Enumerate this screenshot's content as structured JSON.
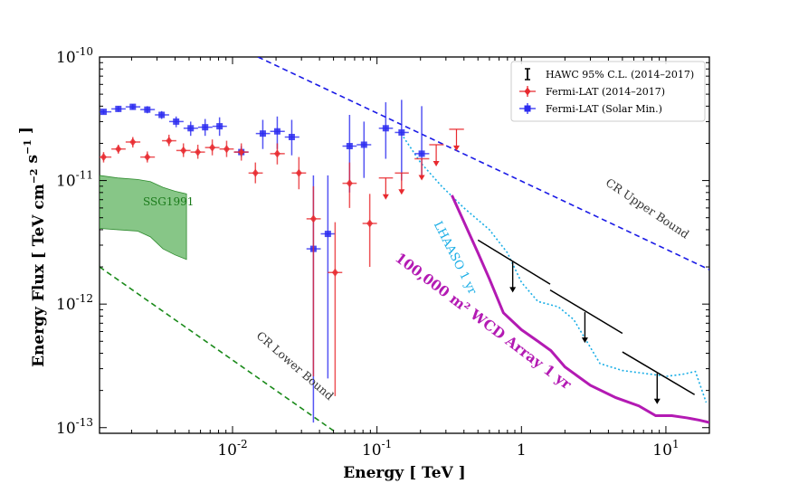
{
  "chart_data": {
    "type": "scatter",
    "xlabel": "Energy [ TeV ]",
    "ylabel": "Energy Flux [ TeV cm^-2 s^-1 ]",
    "xscale": "log",
    "yscale": "log",
    "xlim": [
      0.0012,
      20
    ],
    "ylim": [
      9e-14,
      1e-10
    ],
    "xticks": [
      {
        "value": 0.01,
        "base": "10",
        "exp": "-2"
      },
      {
        "value": 0.1,
        "base": "10",
        "exp": "-1"
      },
      {
        "value": 1,
        "base": "1",
        "exp": ""
      },
      {
        "value": 10,
        "base": "10",
        "exp": "1"
      }
    ],
    "yticks": [
      {
        "value": 1e-13,
        "base": "10",
        "exp": "-13"
      },
      {
        "value": 1e-12,
        "base": "10",
        "exp": "-12"
      },
      {
        "value": 1e-11,
        "base": "10",
        "exp": "-11"
      },
      {
        "value": 1e-10,
        "base": "10",
        "exp": "-10"
      }
    ],
    "legend": {
      "position": "top-right",
      "entries": [
        {
          "label": "HAWC 95% C.L. (2014–2017)",
          "color": "#000000",
          "marker": "errorbar"
        },
        {
          "label": "Fermi-LAT (2014–2017)",
          "color": "#e8292e",
          "marker": "diamond"
        },
        {
          "label": "Fermi-LAT (Solar Min.)",
          "color": "#2b2bf0",
          "marker": "square"
        }
      ]
    },
    "series": [
      {
        "name": "Fermi-LAT (Solar Min.)",
        "color": "#2b2bf0",
        "marker": "square",
        "points": [
          {
            "x": 0.00128,
            "y": 3.6e-11,
            "xlo": 0.0011,
            "xhi": 0.00145,
            "ylo": 3.45e-11,
            "yhi": 3.75e-11
          },
          {
            "x": 0.00162,
            "y": 3.8e-11,
            "xlo": 0.00145,
            "xhi": 0.00182,
            "ylo": 3.6e-11,
            "yhi": 4e-11
          },
          {
            "x": 0.00204,
            "y": 3.95e-11,
            "xlo": 0.00182,
            "xhi": 0.0023,
            "ylo": 3.75e-11,
            "yhi": 4.15e-11
          },
          {
            "x": 0.00257,
            "y": 3.75e-11,
            "xlo": 0.0023,
            "xhi": 0.0029,
            "ylo": 3.5e-11,
            "yhi": 4e-11
          },
          {
            "x": 0.00323,
            "y": 3.4e-11,
            "xlo": 0.0029,
            "xhi": 0.00364,
            "ylo": 3.15e-11,
            "yhi": 3.65e-11
          },
          {
            "x": 0.00407,
            "y": 3e-11,
            "xlo": 0.00364,
            "xhi": 0.00458,
            "ylo": 2.7e-11,
            "yhi": 3.3e-11
          },
          {
            "x": 0.00513,
            "y": 2.65e-11,
            "xlo": 0.00458,
            "xhi": 0.00577,
            "ylo": 2.3e-11,
            "yhi": 3e-11
          },
          {
            "x": 0.00646,
            "y": 2.7e-11,
            "xlo": 0.00577,
            "xhi": 0.00726,
            "ylo": 2.3e-11,
            "yhi": 3.15e-11
          },
          {
            "x": 0.00813,
            "y": 2.75e-11,
            "xlo": 0.00726,
            "xhi": 0.00914,
            "ylo": 2.3e-11,
            "yhi": 3.25e-11
          },
          {
            "x": 0.0115,
            "y": 1.7e-11,
            "xlo": 0.0103,
            "xhi": 0.0129,
            "ylo": 1.55e-11,
            "yhi": 1.9e-11
          },
          {
            "x": 0.0162,
            "y": 2.4e-11,
            "xlo": 0.0145,
            "xhi": 0.0182,
            "ylo": 1.8e-11,
            "yhi": 3.1e-11
          },
          {
            "x": 0.0204,
            "y": 2.5e-11,
            "xlo": 0.0182,
            "xhi": 0.023,
            "ylo": 1.8e-11,
            "yhi": 3.3e-11
          },
          {
            "x": 0.0257,
            "y": 2.25e-11,
            "xlo": 0.023,
            "xhi": 0.029,
            "ylo": 1.6e-11,
            "yhi": 3.1e-11
          },
          {
            "x": 0.0363,
            "y": 2.8e-12,
            "xlo": 0.0325,
            "xhi": 0.0408,
            "ylo": 1.1e-13,
            "yhi": 1.1e-11
          },
          {
            "x": 0.0457,
            "y": 3.7e-12,
            "xlo": 0.0408,
            "xhi": 0.0512,
            "ylo": 2.5e-13,
            "yhi": 1.1e-11
          },
          {
            "x": 0.0646,
            "y": 1.9e-11,
            "xlo": 0.0577,
            "xhi": 0.0724,
            "ylo": 8e-12,
            "yhi": 3.4e-11
          },
          {
            "x": 0.0813,
            "y": 1.95e-11,
            "xlo": 0.0724,
            "xhi": 0.0912,
            "ylo": 1.05e-11,
            "yhi": 3e-11
          },
          {
            "x": 0.115,
            "y": 2.65e-11,
            "xlo": 0.103,
            "xhi": 0.129,
            "ylo": 1.5e-11,
            "yhi": 4.3e-11
          },
          {
            "x": 0.148,
            "y": 2.45e-11,
            "xlo": 0.133,
            "xhi": 0.166,
            "ylo": 1e-11,
            "yhi": 4.5e-11
          },
          {
            "x": 0.204,
            "y": 1.65e-11,
            "xlo": 0.182,
            "xhi": 0.23,
            "ylo": 1.1e-11,
            "yhi": 4e-11
          }
        ]
      },
      {
        "name": "Fermi-LAT (2014–2017)",
        "color": "#e8292e",
        "marker": "diamond",
        "points": [
          {
            "x": 0.00128,
            "y": 1.55e-11,
            "xlo": 0.0011,
            "xhi": 0.00145,
            "ylo": 1.4e-11,
            "yhi": 1.7e-11
          },
          {
            "x": 0.00162,
            "y": 1.8e-11,
            "xlo": 0.00145,
            "xhi": 0.00182,
            "ylo": 1.65e-11,
            "yhi": 1.95e-11
          },
          {
            "x": 0.00204,
            "y": 2.05e-11,
            "xlo": 0.00182,
            "xhi": 0.0023,
            "ylo": 1.85e-11,
            "yhi": 2.25e-11
          },
          {
            "x": 0.00257,
            "y": 1.55e-11,
            "xlo": 0.0023,
            "xhi": 0.0029,
            "ylo": 1.4e-11,
            "yhi": 1.72e-11
          },
          {
            "x": 0.00363,
            "y": 2.1e-11,
            "xlo": 0.00325,
            "xhi": 0.00408,
            "ylo": 1.9e-11,
            "yhi": 2.35e-11
          },
          {
            "x": 0.00457,
            "y": 1.75e-11,
            "xlo": 0.00408,
            "xhi": 0.00512,
            "ylo": 1.55e-11,
            "yhi": 2e-11
          },
          {
            "x": 0.00575,
            "y": 1.7e-11,
            "xlo": 0.00512,
            "xhi": 0.00645,
            "ylo": 1.5e-11,
            "yhi": 1.95e-11
          },
          {
            "x": 0.00724,
            "y": 1.85e-11,
            "xlo": 0.00645,
            "xhi": 0.00812,
            "ylo": 1.6e-11,
            "yhi": 2.15e-11
          },
          {
            "x": 0.0091,
            "y": 1.8e-11,
            "xlo": 0.00812,
            "xhi": 0.0102,
            "ylo": 1.55e-11,
            "yhi": 2.1e-11
          },
          {
            "x": 0.0115,
            "y": 1.7e-11,
            "xlo": 0.0102,
            "xhi": 0.0129,
            "ylo": 1.45e-11,
            "yhi": 2e-11
          },
          {
            "x": 0.0144,
            "y": 1.15e-11,
            "xlo": 0.0129,
            "xhi": 0.0162,
            "ylo": 9.5e-12,
            "yhi": 1.4e-11
          },
          {
            "x": 0.0204,
            "y": 1.65e-11,
            "xlo": 0.0182,
            "xhi": 0.023,
            "ylo": 1.35e-11,
            "yhi": 2e-11
          },
          {
            "x": 0.0288,
            "y": 1.15e-11,
            "xlo": 0.0257,
            "xhi": 0.0323,
            "ylo": 8.5e-12,
            "yhi": 1.55e-11
          },
          {
            "x": 0.0363,
            "y": 4.9e-12,
            "xlo": 0.0325,
            "xhi": 0.0408,
            "ylo": 2.6e-13,
            "yhi": 9e-12
          },
          {
            "x": 0.0513,
            "y": 1.8e-12,
            "xlo": 0.0457,
            "xhi": 0.0575,
            "ylo": 1.8e-13,
            "yhi": 4.6e-12
          },
          {
            "x": 0.0646,
            "y": 9.5e-12,
            "xlo": 0.0577,
            "xhi": 0.0724,
            "ylo": 6e-12,
            "yhi": 1.4e-11
          },
          {
            "x": 0.0891,
            "y": 4.5e-12,
            "xlo": 0.0794,
            "xhi": 0.1,
            "ylo": 2e-12,
            "yhi": 7.8e-12
          }
        ],
        "upper_limits": [
          {
            "x": 0.115,
            "y": 1.05e-11,
            "xlo": 0.103,
            "xhi": 0.129
          },
          {
            "x": 0.148,
            "y": 1.15e-11,
            "xlo": 0.133,
            "xhi": 0.166
          },
          {
            "x": 0.204,
            "y": 1.5e-11,
            "xlo": 0.182,
            "xhi": 0.23
          },
          {
            "x": 0.257,
            "y": 1.95e-11,
            "xlo": 0.23,
            "xhi": 0.29
          },
          {
            "x": 0.355,
            "y": 2.6e-11,
            "xlo": 0.316,
            "xhi": 0.4
          }
        ]
      },
      {
        "name": "HAWC 95% C.L. (2014–2017)",
        "color": "#000000",
        "marker": "upper-limit",
        "upper_limits": [
          {
            "x": 0.87,
            "y": 2.2e-12,
            "xlo": 0.5,
            "xhi": 1.58,
            "yleft": 3.3e-12,
            "yright": 1.45e-12
          },
          {
            "x": 2.75,
            "y": 8.6e-13,
            "xlo": 1.58,
            "xhi": 5.0,
            "yleft": 1.3e-12,
            "yright": 5.8e-13
          },
          {
            "x": 8.7,
            "y": 2.75e-13,
            "xlo": 5.0,
            "xhi": 15.8,
            "yleft": 4.1e-13,
            "yright": 1.85e-13
          }
        ]
      }
    ],
    "curves": [
      {
        "name": "CR Upper Bound",
        "color": "#1a1ae6",
        "style": "dashed",
        "points": [
          [
            0.015,
            1e-10
          ],
          [
            20,
            1.9e-12
          ]
        ],
        "label": "CR Upper Bound",
        "label_x": 7.2,
        "label_y": 5.6e-12
      },
      {
        "name": "CR Lower Bound",
        "color": "#1a8a1a",
        "style": "dashed",
        "points": [
          [
            0.0012,
            2e-12
          ],
          [
            0.053,
            9e-14
          ]
        ],
        "label": "CR Lower Bound",
        "label_x": 0.026,
        "label_y": 3e-13
      },
      {
        "name": "LHAASO 1 yr",
        "color": "#1aaee6",
        "style": "dotted",
        "points": [
          [
            0.147,
            2.4e-11
          ],
          [
            0.2,
            1.4e-11
          ],
          [
            0.28,
            9e-12
          ],
          [
            0.4,
            6e-12
          ],
          [
            0.6,
            4e-12
          ],
          [
            0.8,
            2.6e-12
          ],
          [
            1.0,
            1.5e-12
          ],
          [
            1.3,
            1.05e-12
          ],
          [
            1.8,
            9.5e-13
          ],
          [
            2.3,
            7.5e-13
          ],
          [
            3.5,
            3.3e-13
          ],
          [
            5.0,
            2.9e-13
          ],
          [
            8.0,
            2.7e-13
          ],
          [
            10.0,
            2.6e-13
          ],
          [
            13,
            2.7e-13
          ],
          [
            16,
            2.85e-13
          ],
          [
            19,
            1.6e-13
          ]
        ],
        "label": "LHAASO 1 yr",
        "label_x": 0.33,
        "label_y": 2.3e-12
      },
      {
        "name": "100,000 m2 WCD Array 1 yr",
        "color": "#b31ab3",
        "style": "solid",
        "points": [
          [
            0.33,
            7.6e-12
          ],
          [
            0.5,
            2.6e-12
          ],
          [
            0.6,
            1.6e-12
          ],
          [
            0.75,
            8.5e-13
          ],
          [
            1.0,
            6.2e-13
          ],
          [
            1.3,
            5e-13
          ],
          [
            1.6,
            4.2e-13
          ],
          [
            2.0,
            3.1e-13
          ],
          [
            3.0,
            2.2e-13
          ],
          [
            4.5,
            1.75e-13
          ],
          [
            6.5,
            1.5e-13
          ],
          [
            8.5,
            1.25e-13
          ],
          [
            11,
            1.25e-13
          ],
          [
            14,
            1.2e-13
          ],
          [
            17,
            1.15e-13
          ],
          [
            20,
            1.1e-13
          ]
        ],
        "label": "100,000 m² WCD Array 1 yr",
        "label_x": 0.52,
        "label_y": 6.8e-13
      }
    ],
    "regions": [
      {
        "name": "SSG1991",
        "color": "#5fb35f",
        "edgecolor": "#2e8b2e",
        "label": "SSG1991",
        "label_x": 0.0024,
        "label_y": 6.3e-12,
        "upper": [
          [
            0.0012,
            1.1e-11
          ],
          [
            0.0016,
            1.05e-11
          ],
          [
            0.0022,
            1.02e-11
          ],
          [
            0.0027,
            9.8e-12
          ],
          [
            0.0033,
            8.8e-12
          ],
          [
            0.004,
            8.2e-12
          ],
          [
            0.0048,
            7.8e-12
          ]
        ],
        "lower": [
          [
            0.0048,
            2.3e-12
          ],
          [
            0.004,
            2.5e-12
          ],
          [
            0.0033,
            2.8e-12
          ],
          [
            0.0027,
            3.5e-12
          ],
          [
            0.0022,
            3.9e-12
          ],
          [
            0.0016,
            4e-12
          ],
          [
            0.0012,
            4.1e-12
          ]
        ]
      }
    ]
  }
}
